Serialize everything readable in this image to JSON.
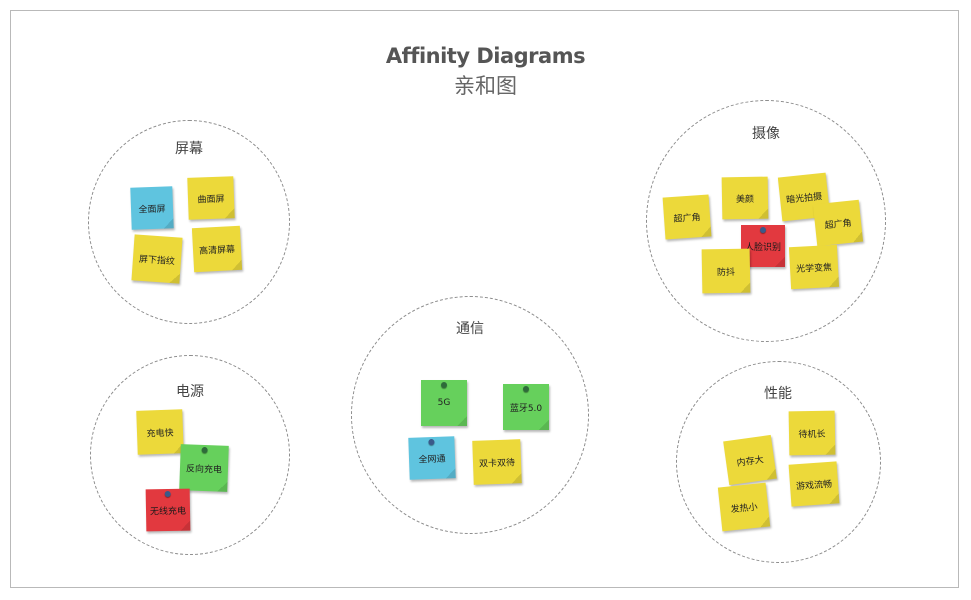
{
  "title": {
    "en": "Affinity Diagrams",
    "zh": "亲和图"
  },
  "colors": {
    "yellow": "#ecd93a",
    "blue": "#5fc4df",
    "green": "#66d05c",
    "red": "#e2393f",
    "border": "#8c8c8c"
  },
  "clusters": {
    "screen": {
      "label": "屏幕",
      "notes": [
        "全面屏",
        "曲面屏",
        "屏下指纹",
        "高清屏幕"
      ]
    },
    "power": {
      "label": "电源",
      "notes": [
        "充电快",
        "反向充电",
        "无线充电"
      ]
    },
    "comm": {
      "label": "通信",
      "notes": [
        "5G",
        "蓝牙5.0",
        "全网通",
        "双卡双待"
      ]
    },
    "camera": {
      "label": "摄像",
      "notes": [
        "超广角",
        "美颜",
        "暗光拍摄",
        "超广角",
        "人脸识别",
        "防抖",
        "光学变焦"
      ]
    },
    "performance": {
      "label": "性能",
      "notes": [
        "待机长",
        "内存大",
        "游戏流畅",
        "发热小"
      ]
    }
  }
}
